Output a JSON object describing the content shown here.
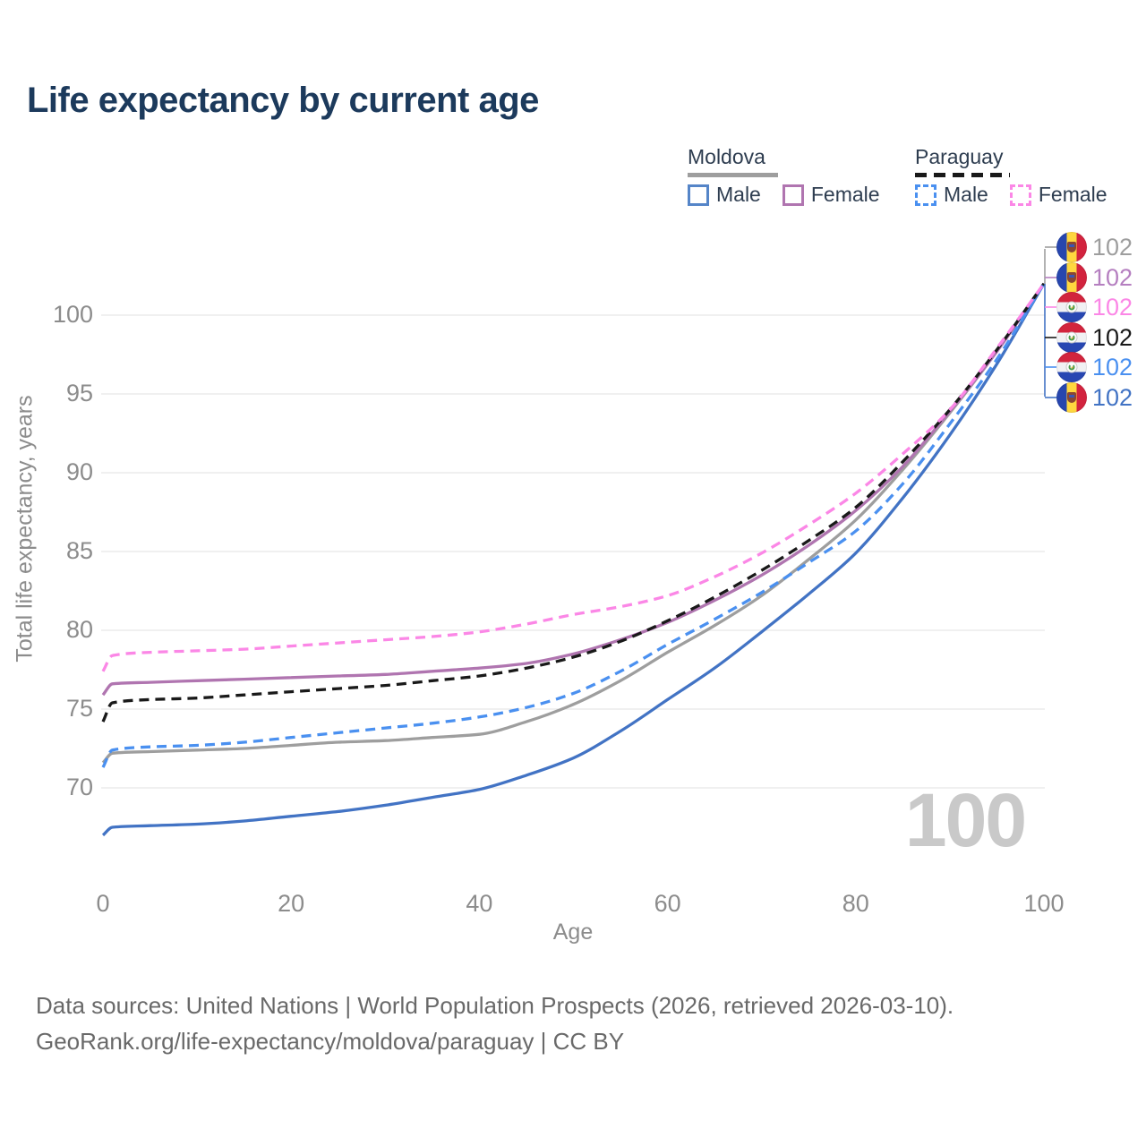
{
  "title": "Life expectancy by current age",
  "legend": {
    "groups": [
      {
        "name": "Moldova",
        "underline": "solid",
        "items": [
          {
            "label": "Male",
            "color": "#4273c4",
            "dash": false
          },
          {
            "label": "Female",
            "color": "#b075b0",
            "dash": false
          }
        ]
      },
      {
        "name": "Paraguay",
        "underline": "dashed",
        "items": [
          {
            "label": "Male",
            "color": "#4a90f0",
            "dash": true
          },
          {
            "label": "Female",
            "color": "#fb87e6",
            "dash": true
          }
        ]
      }
    ]
  },
  "axes": {
    "y_title": "Total life expectancy, years",
    "x_title": "Age",
    "y_ticks": [
      70,
      75,
      80,
      85,
      90,
      95,
      100
    ],
    "x_ticks": [
      0,
      20,
      40,
      60,
      80,
      100
    ]
  },
  "watermark": "100",
  "end_labels": [
    {
      "value": "102",
      "flag": "md",
      "color": "#9e9e9e",
      "series": "Moldova Both"
    },
    {
      "value": "102",
      "flag": "md",
      "color": "#b57fc0",
      "series": "Moldova Female"
    },
    {
      "value": "102",
      "flag": "py",
      "color": "#fb87e6",
      "series": "Paraguay Female"
    },
    {
      "value": "102",
      "flag": "py",
      "color": "#191919",
      "series": "Paraguay Both"
    },
    {
      "value": "102",
      "flag": "py",
      "color": "#4a90f0",
      "series": "Paraguay Male"
    },
    {
      "value": "102",
      "flag": "md",
      "color": "#4273c4",
      "series": "Moldova Male"
    }
  ],
  "footer": {
    "line1": "Data sources: United Nations | World Population Prospects (2026, retrieved 2026-03-10).",
    "line2": "GeoRank.org/life-expectancy/moldova/paraguay | CC BY"
  },
  "chart_data": {
    "type": "line",
    "title": "Life expectancy by current age",
    "xlabel": "Age",
    "ylabel": "Total life expectancy, years",
    "xlim": [
      0,
      100
    ],
    "grid_y_range": [
      70,
      100
    ],
    "y_tick_step": 5,
    "legend_position": "top-right",
    "converge_point": {
      "age": 100,
      "value": 102
    },
    "ages": [
      0,
      1,
      5,
      10,
      15,
      20,
      25,
      30,
      35,
      40,
      45,
      50,
      55,
      60,
      65,
      70,
      75,
      80,
      85,
      90,
      95,
      100
    ],
    "series": [
      {
        "name": "Moldova Both sexes",
        "color": "#9e9e9e",
        "dash": false,
        "end_value": 102,
        "values": [
          71.6,
          72.2,
          72.3,
          72.4,
          72.5,
          72.7,
          72.9,
          73.0,
          73.2,
          73.4,
          74.2,
          75.3,
          76.8,
          78.6,
          80.3,
          82.2,
          84.5,
          87.0,
          90.2,
          93.8,
          97.7,
          102
        ]
      },
      {
        "name": "Moldova Female",
        "color": "#b075b0",
        "dash": false,
        "end_value": 102,
        "values": [
          75.9,
          76.6,
          76.7,
          76.8,
          76.9,
          77.0,
          77.1,
          77.2,
          77.4,
          77.6,
          77.9,
          78.5,
          79.4,
          80.5,
          81.9,
          83.5,
          85.4,
          87.6,
          90.4,
          93.9,
          97.7,
          102
        ]
      },
      {
        "name": "Moldova Male",
        "color": "#4273c4",
        "dash": false,
        "end_value": 102,
        "values": [
          67.0,
          67.5,
          67.6,
          67.7,
          67.9,
          68.2,
          68.5,
          68.9,
          69.4,
          69.9,
          70.8,
          71.9,
          73.6,
          75.6,
          77.6,
          79.9,
          82.3,
          84.9,
          88.4,
          92.4,
          96.9,
          102
        ]
      },
      {
        "name": "Paraguay Both sexes",
        "color": "#191919",
        "dash": true,
        "end_value": 102,
        "values": [
          74.2,
          75.4,
          75.6,
          75.7,
          75.9,
          76.1,
          76.3,
          76.5,
          76.8,
          77.1,
          77.6,
          78.3,
          79.3,
          80.6,
          82.1,
          83.8,
          85.7,
          87.8,
          90.7,
          94.0,
          97.8,
          102
        ]
      },
      {
        "name": "Paraguay Male",
        "color": "#4a90f0",
        "dash": true,
        "end_value": 102,
        "values": [
          71.3,
          72.4,
          72.6,
          72.7,
          72.9,
          73.2,
          73.5,
          73.8,
          74.1,
          74.5,
          75.1,
          76.0,
          77.4,
          79.1,
          80.7,
          82.4,
          84.3,
          86.3,
          89.3,
          93.1,
          97.2,
          102
        ]
      },
      {
        "name": "Paraguay Female",
        "color": "#fb87e6",
        "dash": true,
        "end_value": 102,
        "values": [
          77.4,
          78.4,
          78.6,
          78.7,
          78.8,
          79.0,
          79.2,
          79.4,
          79.6,
          79.9,
          80.4,
          81.0,
          81.5,
          82.2,
          83.4,
          84.9,
          86.7,
          88.7,
          91.2,
          94.0,
          97.9,
          102
        ]
      }
    ]
  }
}
